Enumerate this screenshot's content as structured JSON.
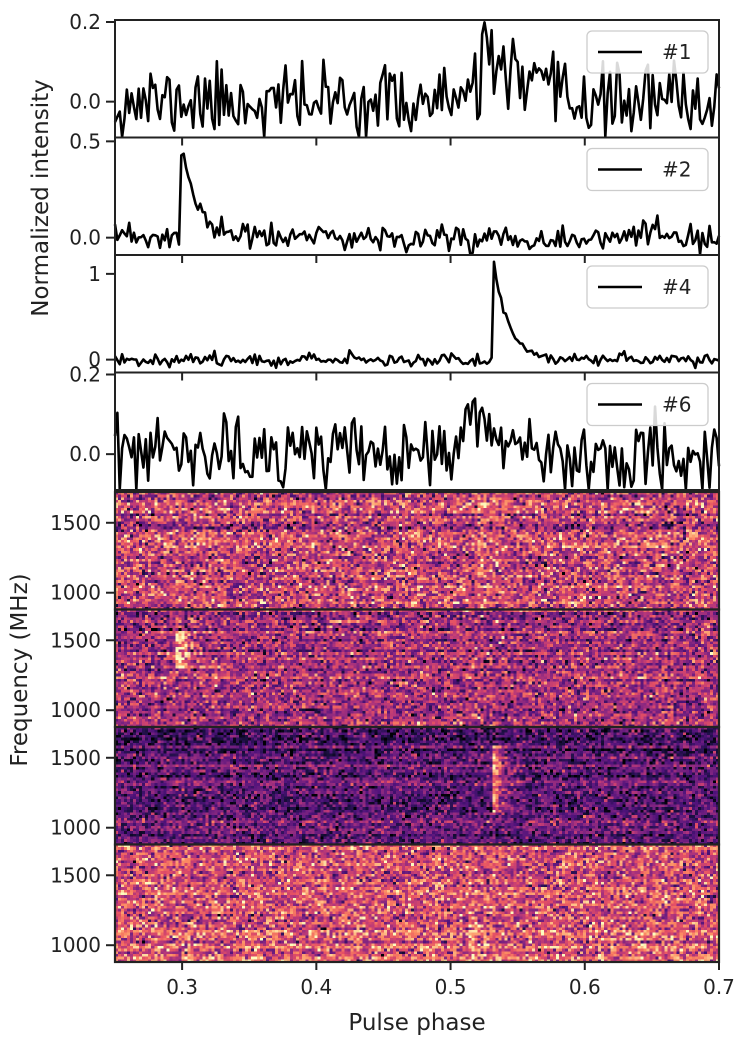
{
  "chart_data": {
    "type": "line",
    "layout": "vertically stacked subplots with shared x axis",
    "xlabel": "Pulse phase",
    "xlim": [
      0.25,
      0.7
    ],
    "x_ticks": [
      0.3,
      0.4,
      0.5,
      0.6,
      0.7
    ],
    "x_tick_labels": [
      "0.3",
      "0.4",
      "0.5",
      "0.6",
      "0.7"
    ],
    "profiles_ylabel": "Normalized intensity",
    "dynamic_ylabel": "Frequency (MHz)",
    "line_color": "#000000",
    "colormap": "magma",
    "profiles": [
      {
        "name": "#1",
        "ylim": [
          -0.09,
          0.205
        ],
        "y_ticks": [
          0.0,
          0.2
        ],
        "y_tick_labels": [
          "0.0",
          "0.2"
        ],
        "legend_position": "upper-right",
        "noise_std": 0.045,
        "baseline": 0.0,
        "seed": 11,
        "peak_phase": 0.522,
        "peak_value": 0.18,
        "decay": 0.022
      },
      {
        "name": "#2",
        "ylim": [
          -0.09,
          0.52
        ],
        "y_ticks": [
          0.0,
          0.5
        ],
        "y_tick_labels": [
          "0.0",
          "0.5"
        ],
        "legend_position": "upper-right",
        "noise_std": 0.035,
        "baseline": 0.0,
        "seed": 23,
        "peak_phase": 0.298,
        "peak_value": 0.5,
        "decay": 0.012
      },
      {
        "name": "#4",
        "ylim": [
          -0.15,
          1.22
        ],
        "y_ticks": [
          0,
          1
        ],
        "y_tick_labels": [
          "0",
          "1"
        ],
        "legend_position": "upper-right",
        "noise_std": 0.035,
        "baseline": 0.0,
        "seed": 37,
        "peak_phase": 0.532,
        "peak_value": 1.15,
        "decay": 0.011
      },
      {
        "name": "#6",
        "ylim": [
          -0.09,
          0.205
        ],
        "y_ticks": [
          0.0,
          0.2
        ],
        "y_tick_labels": [
          "0.0",
          "0.2"
        ],
        "legend_position": "upper-right",
        "noise_std": 0.045,
        "baseline": 0.0,
        "seed": 53,
        "peak_phase": 0.51,
        "peak_value": 0.13,
        "decay": 0.022
      }
    ],
    "dynamic_spectra": [
      {
        "pulse": "#1",
        "ylim": [
          880,
          1720
        ],
        "y_ticks": [
          1000,
          1500
        ],
        "y_tick_labels": [
          "1000",
          "1500"
        ],
        "base_level": 0.55,
        "noise": 0.18,
        "seed": 101,
        "signal_phase": 0.522,
        "signal_strength": 0.15,
        "signal_band": [
          880,
          1720
        ]
      },
      {
        "pulse": "#2",
        "ylim": [
          880,
          1720
        ],
        "y_ticks": [
          1000,
          1500
        ],
        "y_tick_labels": [
          "1000",
          "1500"
        ],
        "base_level": 0.45,
        "noise": 0.16,
        "seed": 202,
        "signal_phase": 0.298,
        "signal_strength": 0.45,
        "signal_band": [
          1300,
          1570
        ]
      },
      {
        "pulse": "#4",
        "ylim": [
          880,
          1720
        ],
        "y_ticks": [
          1000,
          1500
        ],
        "y_tick_labels": [
          "1000",
          "1500"
        ],
        "base_level": 0.28,
        "noise": 0.13,
        "seed": 303,
        "signal_phase": 0.533,
        "signal_strength": 0.5,
        "signal_band": [
          1100,
          1580
        ]
      },
      {
        "pulse": "#6",
        "ylim": [
          880,
          1720
        ],
        "y_ticks": [
          1000,
          1500
        ],
        "y_tick_labels": [
          "1000",
          "1500"
        ],
        "base_level": 0.6,
        "noise": 0.17,
        "seed": 404,
        "signal_phase": 0.515,
        "signal_strength": 0.12,
        "signal_band": [
          880,
          1300
        ]
      }
    ]
  }
}
